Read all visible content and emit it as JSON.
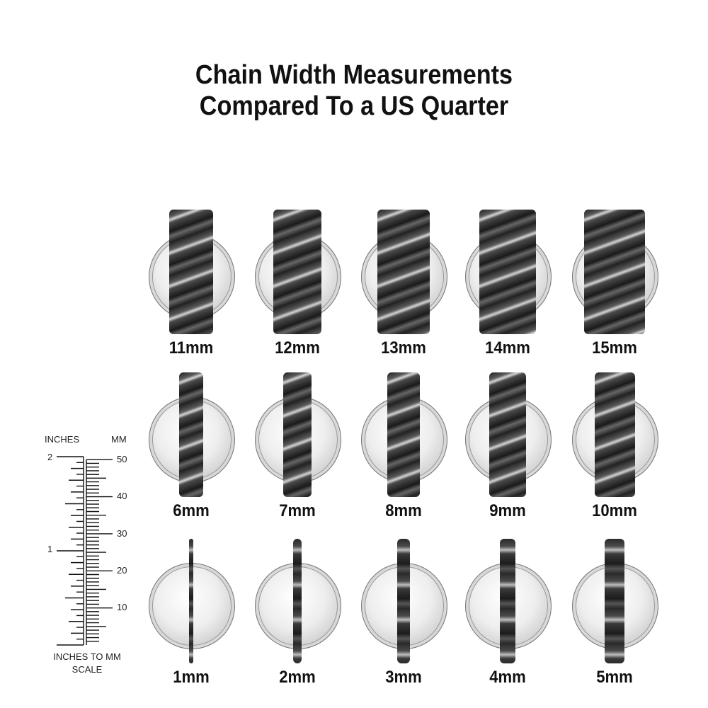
{
  "title": {
    "line1": "Chain Width Measurements",
    "line2": "Compared To a US Quarter"
  },
  "rows": [
    {
      "items": [
        {
          "mm": 11,
          "label": "11mm"
        },
        {
          "mm": 12,
          "label": "12mm"
        },
        {
          "mm": 13,
          "label": "13mm"
        },
        {
          "mm": 14,
          "label": "14mm"
        },
        {
          "mm": 15,
          "label": "15mm"
        }
      ]
    },
    {
      "items": [
        {
          "mm": 6,
          "label": "6mm"
        },
        {
          "mm": 7,
          "label": "7mm"
        },
        {
          "mm": 8,
          "label": "8mm"
        },
        {
          "mm": 9,
          "label": "9mm"
        },
        {
          "mm": 10,
          "label": "10mm"
        }
      ]
    },
    {
      "items": [
        {
          "mm": 1,
          "label": "1mm"
        },
        {
          "mm": 2,
          "label": "2mm"
        },
        {
          "mm": 3,
          "label": "3mm"
        },
        {
          "mm": 4,
          "label": "4mm"
        },
        {
          "mm": 5,
          "label": "5mm"
        }
      ]
    }
  ],
  "scale": {
    "inches_label": "INCHES",
    "mm_label": "MM",
    "inch_ticks": [
      "1",
      "2"
    ],
    "mm_ticks": [
      "10",
      "20",
      "30",
      "40",
      "50"
    ],
    "caption_line1": "INCHES TO MM",
    "caption_line2": "SCALE",
    "inch_max": 2,
    "mm_max": 50
  },
  "colors": {
    "chain": "#2a2a2a",
    "coin": "#e6e6e6",
    "text": "#111111"
  }
}
